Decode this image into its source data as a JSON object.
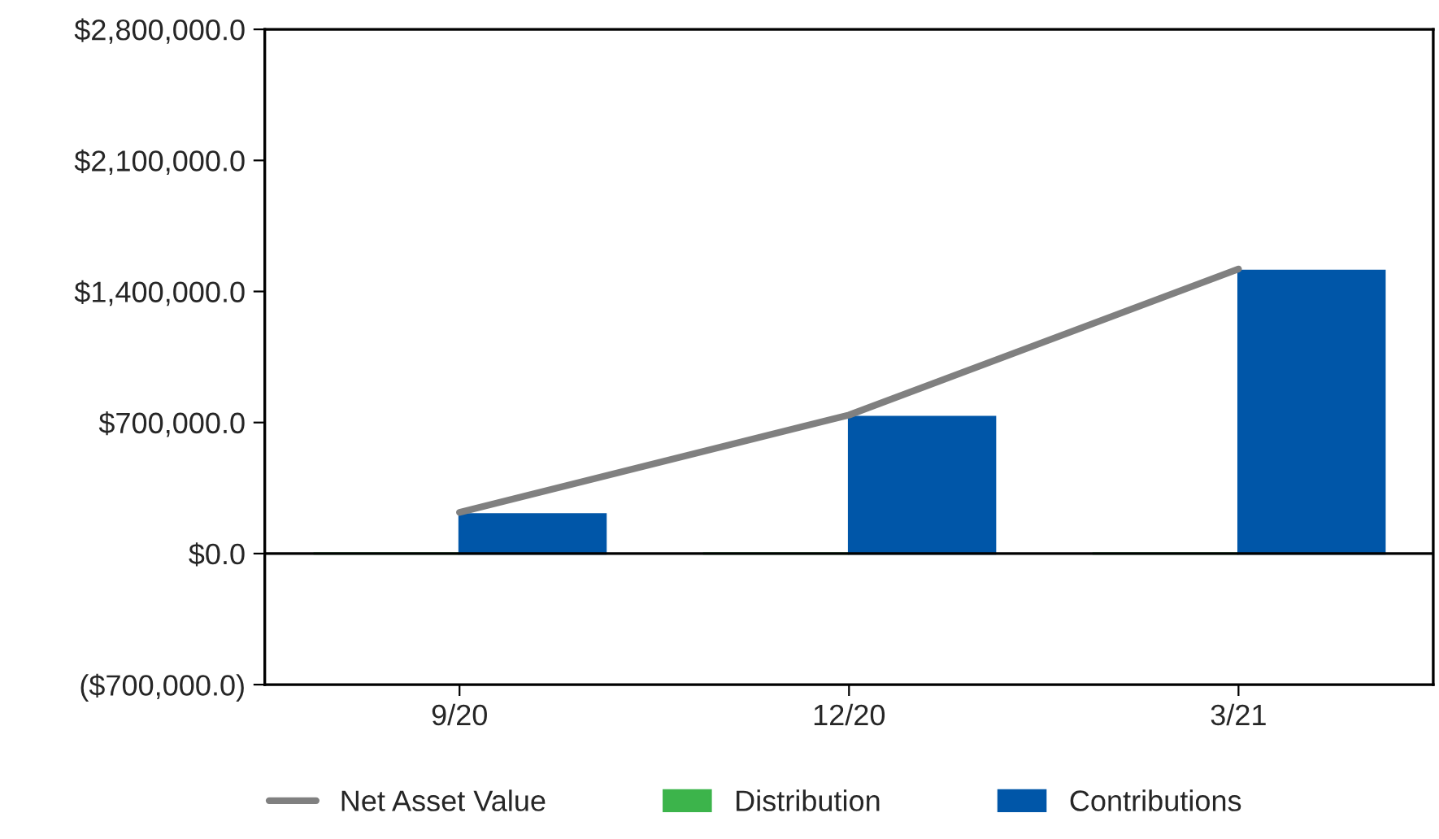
{
  "chart_data": {
    "type": "bar",
    "categories": [
      "9/20",
      "12/20",
      "3/21"
    ],
    "series": [
      {
        "name": "Net Asset Value",
        "type": "line",
        "color": "#808080",
        "values": [
          220000,
          740000,
          1520000
        ]
      },
      {
        "name": "Distribution",
        "color": "#3cb44b",
        "values": [
          0,
          0,
          0
        ]
      },
      {
        "name": "Contributions",
        "color": "#0056a8",
        "values": [
          210000,
          730000,
          1510000
        ]
      }
    ],
    "ylim": [
      -700000,
      2800000
    ],
    "yticks": [
      {
        "value": -700000,
        "label": "($700,000.0)"
      },
      {
        "value": 0,
        "label": "$0.0"
      },
      {
        "value": 700000,
        "label": "$700,000.0"
      },
      {
        "value": 1400000,
        "label": "$1,400,000.0"
      },
      {
        "value": 2100000,
        "label": "$2,100,000.0"
      },
      {
        "value": 2800000,
        "label": "$2,800,000.0"
      }
    ],
    "ref_lines": [
      {
        "axis": "y",
        "value": 0,
        "color": "#000000"
      }
    ],
    "grid": false,
    "legend": "bottom",
    "marker": "none",
    "line_style": "solid"
  }
}
